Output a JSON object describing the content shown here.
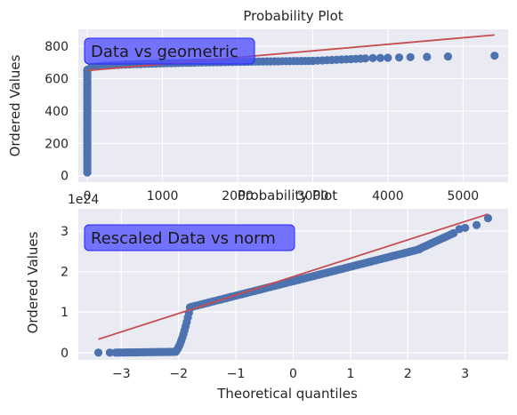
{
  "chart_data": [
    {
      "type": "scatter",
      "title": "Probability Plot",
      "xlabel": "",
      "ylabel": "Ordered Values",
      "xlim": [
        -120,
        5600
      ],
      "ylim": [
        -40,
        905
      ],
      "xticks": [
        0,
        1000,
        2000,
        3000,
        4000,
        5000
      ],
      "xtick_labels": [
        "0",
        "1000",
        "2000",
        "3000",
        "4000",
        "5000"
      ],
      "yticks": [
        0,
        200,
        400,
        600,
        800
      ],
      "ytick_labels": [
        "0",
        "200",
        "400",
        "600",
        "800"
      ],
      "annotation": "Data vs geometric",
      "grid": true,
      "fit_line": {
        "x": [
          0,
          5420
        ],
        "y": [
          650,
          870
        ]
      },
      "point_groups": [
        {
          "x_from": 0,
          "x_to": 0,
          "y_from": 20,
          "y_to": 650,
          "n": 45
        },
        {
          "x_from": 0,
          "x_to": 3000,
          "y_from": 655,
          "y_to": 710,
          "n": 60,
          "curve": 0.3
        },
        {
          "x_from": 3000,
          "x_to": 3700,
          "y_from": 710,
          "y_to": 725,
          "n": 12
        }
      ],
      "points": [
        [
          3800,
          727
        ],
        [
          3900,
          728
        ],
        [
          4000,
          729
        ],
        [
          4150,
          731
        ],
        [
          4300,
          733
        ],
        [
          4520,
          735
        ],
        [
          4800,
          737
        ],
        [
          5420,
          742
        ]
      ]
    },
    {
      "type": "scatter",
      "title": "Probability Plot",
      "xlabel": "Theoretical quantiles",
      "ylabel": "Ordered Values",
      "y_scale_note": "1e24",
      "xlim": [
        -3.75,
        3.75
      ],
      "ylim": [
        -0.18,
        3.55
      ],
      "xticks": [
        -3,
        -2,
        -1,
        0,
        1,
        2,
        3
      ],
      "xtick_labels": [
        "−3",
        "−2",
        "−1",
        "0",
        "1",
        "2",
        "3"
      ],
      "yticks": [
        0,
        1,
        2,
        3
      ],
      "ytick_labels": [
        "0",
        "1",
        "2",
        "3"
      ],
      "annotation": "Rescaled Data vs norm",
      "grid": true,
      "fit_line": {
        "x": [
          -3.4,
          3.4
        ],
        "y": [
          0.33,
          3.42
        ]
      },
      "point_groups": [
        {
          "x_from": -3.1,
          "x_to": -2.05,
          "y_from": 0.0,
          "y_to": 0.02,
          "n": 30
        },
        {
          "x_from": -2.05,
          "x_to": -1.8,
          "y_from": 0.04,
          "y_to": 1.1,
          "n": 14,
          "curve": 1.5
        },
        {
          "x_from": -1.8,
          "x_to": 2.2,
          "y_from": 1.12,
          "y_to": 2.55,
          "n": 90
        },
        {
          "x_from": 2.2,
          "x_to": 2.8,
          "y_from": 2.56,
          "y_to": 2.95,
          "n": 14
        }
      ],
      "points": [
        [
          -3.4,
          0.0
        ],
        [
          -3.2,
          0.0
        ],
        [
          2.9,
          3.05
        ],
        [
          3.0,
          3.08
        ],
        [
          3.2,
          3.15
        ],
        [
          3.4,
          3.32
        ]
      ]
    }
  ]
}
